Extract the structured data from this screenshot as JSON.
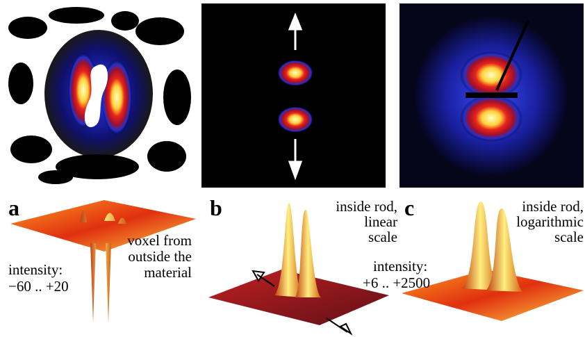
{
  "panels": [
    {
      "label": "a",
      "notes": [
        [
          "intensity:",
          "−60 .. +20"
        ],
        [
          "voxel from",
          "outside the",
          "material"
        ]
      ]
    },
    {
      "label": "b",
      "notes": [
        [
          "inside rod,",
          "linear",
          "scale"
        ]
      ]
    },
    {
      "label": "c",
      "notes": [
        [
          "inside rod,",
          "logarithmic",
          "scale"
        ],
        [
          "intensity:",
          "+6 .. +2500"
        ]
      ]
    }
  ]
}
